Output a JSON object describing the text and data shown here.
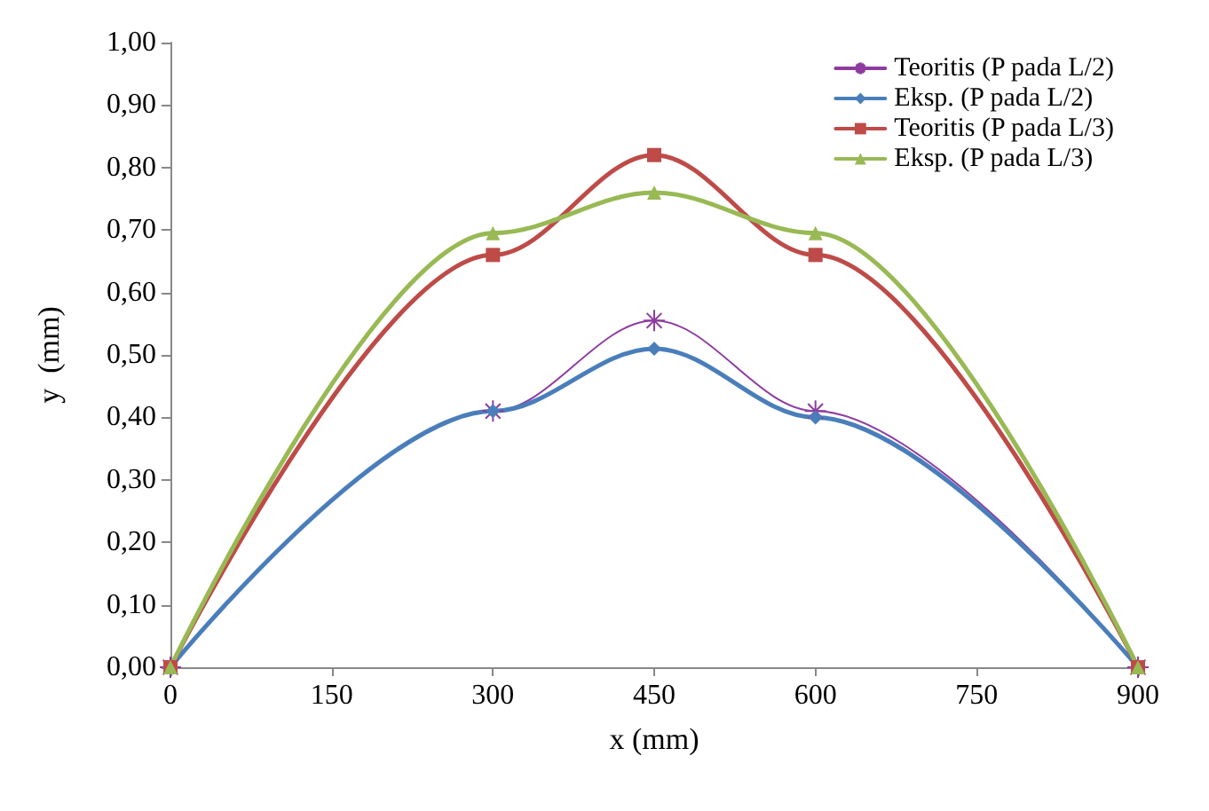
{
  "chart_data": {
    "type": "line",
    "xlabel": "x (mm)",
    "ylabel": "y  (mm)",
    "x": [
      0,
      300,
      450,
      600,
      900
    ],
    "series": [
      {
        "name": "Teoritis (P pada L/2)",
        "color": "#8e3ba0",
        "marker": "cross",
        "values": [
          0,
          0.41,
          0.555,
          0.41,
          0
        ]
      },
      {
        "name": "Eksp. (P pada L/2)",
        "color": "#4a7ebb",
        "marker": "diamond",
        "values": [
          0,
          0.41,
          0.51,
          0.4,
          0
        ]
      },
      {
        "name": "Teoritis (P pada L/3)",
        "color": "#be4b48",
        "marker": "square",
        "values": [
          0,
          0.66,
          0.82,
          0.66,
          0
        ]
      },
      {
        "name": "Eksp. (P pada L/3)",
        "color": "#98b954",
        "marker": "triangle",
        "values": [
          0,
          0.695,
          0.76,
          0.695,
          0
        ]
      }
    ],
    "xlim": [
      0,
      900
    ],
    "xticks": [
      0,
      150,
      300,
      450,
      600,
      750,
      900
    ],
    "ylim": [
      0,
      1
    ],
    "yticks": [
      {
        "value": 0,
        "label": "0,00"
      },
      {
        "value": 0.1,
        "label": "0,10"
      },
      {
        "value": 0.2,
        "label": "0,20"
      },
      {
        "value": 0.3,
        "label": "0,30"
      },
      {
        "value": 0.4,
        "label": "0,40"
      },
      {
        "value": 0.5,
        "label": "0,50"
      },
      {
        "value": 0.6,
        "label": "0,60"
      },
      {
        "value": 0.7,
        "label": "0,70"
      },
      {
        "value": 0.8,
        "label": "0,80"
      },
      {
        "value": 0.9,
        "label": "0,90"
      },
      {
        "value": 1,
        "label": "1,00"
      }
    ],
    "grid": false,
    "legend": "top right",
    "line_style": "solid"
  }
}
